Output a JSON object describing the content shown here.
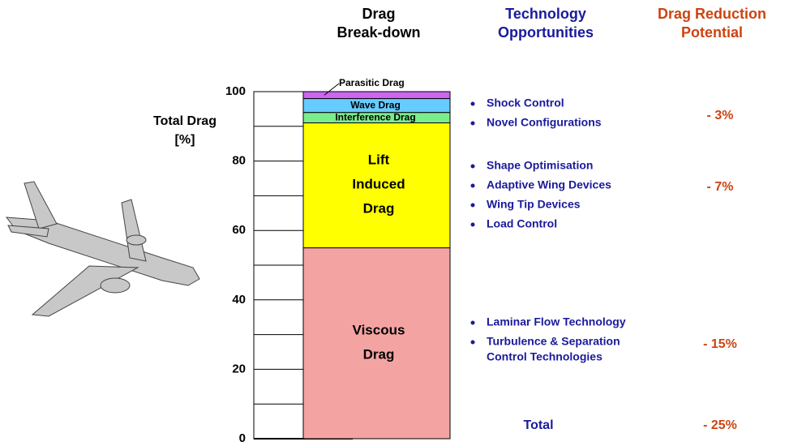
{
  "chart_data": {
    "type": "stacked-bar",
    "headers": [
      [
        "Drag",
        "Break-down"
      ],
      [
        "Technology",
        "Opportunities"
      ],
      [
        "Drag Reduction",
        "Potential"
      ]
    ],
    "ylabel": [
      "Total Drag",
      "[%]"
    ],
    "ylim": [
      0,
      100
    ],
    "yticks": [
      0,
      20,
      40,
      60,
      80,
      100
    ],
    "minor_yticks": [
      10,
      30,
      50,
      70,
      90
    ],
    "series": [
      {
        "name": "Viscous Drag",
        "color": "#f4a3a3",
        "values": [
          55
        ]
      },
      {
        "name": "Lift Induced Drag",
        "color": "#ffff00",
        "values": [
          36
        ]
      },
      {
        "name": "Interference Drag",
        "color": "#7ced8c",
        "values": [
          3
        ]
      },
      {
        "name": "Wave Drag",
        "color": "#66ccff",
        "values": [
          4
        ]
      },
      {
        "name": "Parasitic Drag",
        "color": "#cc66ee",
        "values": [
          2
        ]
      }
    ],
    "groups": [
      {
        "items": [
          [
            "Shock Control"
          ],
          [
            "Novel Configurations"
          ]
        ],
        "reduction": "- 3%"
      },
      {
        "items": [
          [
            "Shape Optimisation"
          ],
          [
            "Adaptive Wing Devices"
          ],
          [
            "Wing Tip Devices"
          ],
          [
            "Load Control"
          ]
        ],
        "reduction": "- 7%"
      },
      {
        "items": [
          [
            "Laminar Flow Technology"
          ],
          [
            "Turbulence & Separation",
            "Control Technologies"
          ]
        ],
        "reduction": "- 15%"
      }
    ],
    "total": {
      "label": "Total",
      "reduction": "- 25%"
    }
  }
}
